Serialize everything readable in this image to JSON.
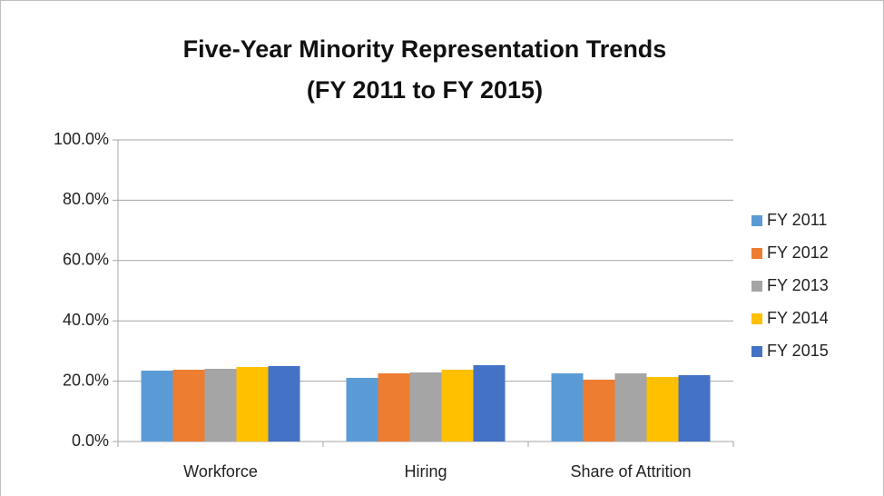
{
  "chart_data": {
    "type": "bar",
    "title": [
      "Five-Year Minority Representation Trends",
      "(FY 2011 to FY 2015)"
    ],
    "categories": [
      "Workforce",
      "Hiring",
      "Share of Attrition"
    ],
    "series": [
      {
        "name": "FY 2011",
        "color": "#5b9bd5",
        "values": [
          23.5,
          21.1,
          22.6
        ]
      },
      {
        "name": "FY 2012",
        "color": "#ed7d31",
        "values": [
          23.8,
          22.6,
          20.5
        ]
      },
      {
        "name": "FY 2013",
        "color": "#a5a5a5",
        "values": [
          24.1,
          22.9,
          22.6
        ]
      },
      {
        "name": "FY 2014",
        "color": "#ffc000",
        "values": [
          24.7,
          23.8,
          21.4
        ]
      },
      {
        "name": "FY 2015",
        "color": "#4472c4",
        "values": [
          25.0,
          25.3,
          22.0
        ]
      }
    ],
    "ylim": [
      0,
      100
    ],
    "yticks": [
      {
        "value": 0,
        "label": "0.0%"
      },
      {
        "value": 20,
        "label": "20.0%"
      },
      {
        "value": 40,
        "label": "40.0%"
      },
      {
        "value": 60,
        "label": "60.0%"
      },
      {
        "value": 80,
        "label": "80.0%"
      },
      {
        "value": 100,
        "label": "100.0%"
      }
    ],
    "grid": true,
    "legend": "right"
  }
}
